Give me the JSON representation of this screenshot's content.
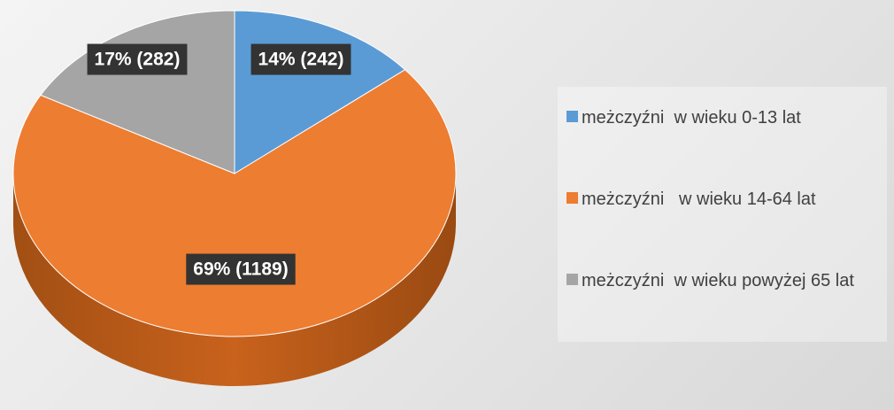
{
  "chart_data": {
    "type": "pie",
    "categories": [
      "meżczyźni  w wieku 0-13 lat",
      "meżczyźni   w wieku 14-64 lat",
      "meżczyźni  w wieku powyżej 65 lat"
    ],
    "values": [
      14,
      69,
      17
    ],
    "value_labels": [
      "14% (242)",
      "69% (1189)",
      "17% (282)"
    ],
    "colors": [
      "#5b9bd5",
      "#ed7d31",
      "#a5a5a5"
    ],
    "legend": "right"
  }
}
